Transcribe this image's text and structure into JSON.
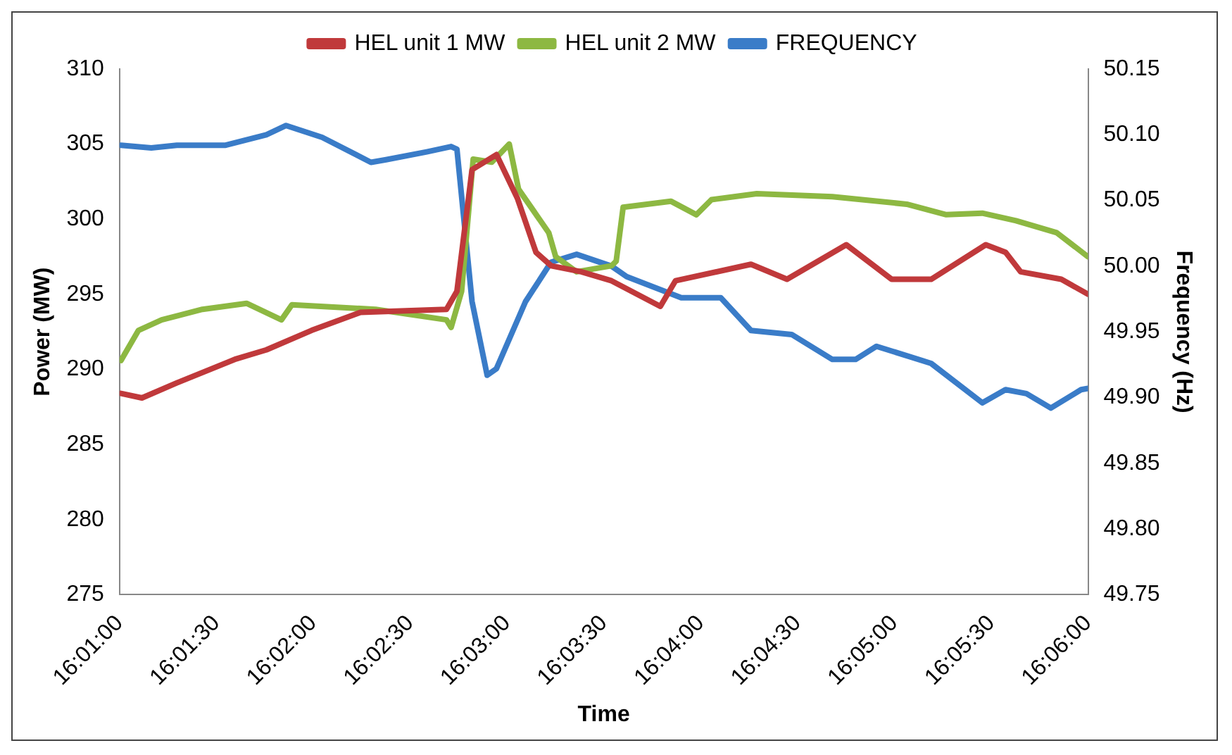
{
  "chart_data": {
    "type": "line",
    "xlabel": "Time",
    "ylabel": "Power (MW)",
    "y2label": "Frequency (Hz)",
    "legend": "top",
    "grid": false,
    "marker": "none",
    "line_style": "solid",
    "xlim": [
      16.01667,
      16.1
    ],
    "xticks": [
      {
        "value": 16.01667,
        "label": "16:01:00"
      },
      {
        "value": 16.025,
        "label": "16:01:30"
      },
      {
        "value": 16.03333,
        "label": "16:02:00"
      },
      {
        "value": 16.04167,
        "label": "16:02:30"
      },
      {
        "value": 16.05,
        "label": "16:03:00"
      },
      {
        "value": 16.05833,
        "label": "16:03:30"
      },
      {
        "value": 16.06667,
        "label": "16:04:00"
      },
      {
        "value": 16.075,
        "label": "16:04:30"
      },
      {
        "value": 16.08333,
        "label": "16:05:00"
      },
      {
        "value": 16.09167,
        "label": "16:05:30"
      },
      {
        "value": 16.1,
        "label": "16:06:00"
      }
    ],
    "ylim": [
      275,
      310
    ],
    "yticks": [
      275,
      280,
      285,
      290,
      295,
      300,
      305,
      310
    ],
    "y2lim": [
      49.75,
      50.15
    ],
    "y2ticks": [
      {
        "value": 49.75,
        "label": "49.75"
      },
      {
        "value": 49.8,
        "label": "49.80"
      },
      {
        "value": 49.85,
        "label": "49.85"
      },
      {
        "value": 49.9,
        "label": "49.90"
      },
      {
        "value": 49.95,
        "label": "49.95"
      },
      {
        "value": 50,
        "label": "50.00"
      },
      {
        "value": 50.05,
        "label": "50.05"
      },
      {
        "value": 50.1,
        "label": "50.10"
      },
      {
        "value": 50.15,
        "label": "50.15"
      }
    ],
    "series": [
      {
        "name": "HEL unit 1 MW",
        "color": "#c0393b",
        "x": [
          16.0168,
          16.0186,
          16.0216,
          16.0267,
          16.0293,
          16.0332,
          16.0374,
          16.0448,
          16.0457,
          16.047,
          16.0491,
          16.0509,
          16.0525,
          16.0538,
          16.0564,
          16.059,
          16.0632,
          16.0645,
          16.071,
          16.0741,
          16.0792,
          16.0831,
          16.0865,
          16.0912,
          16.0929,
          16.0942,
          16.0977,
          16.1
        ],
        "values": [
          288.4,
          288.1,
          289.1,
          290.7,
          291.3,
          292.6,
          293.8,
          294,
          295.2,
          303.3,
          304.3,
          301.4,
          297.8,
          296.9,
          296.5,
          295.9,
          294.2,
          295.9,
          297,
          296,
          298.3,
          296,
          296,
          298.3,
          297.8,
          296.5,
          296,
          295
        ]
      },
      {
        "name": "HEL unit 2 MW",
        "color": "#8db842",
        "x": [
          16.0168,
          16.0183,
          16.0203,
          16.0238,
          16.0276,
          16.0306,
          16.0315,
          16.0387,
          16.0448,
          16.0452,
          16.0461,
          16.0471,
          16.0487,
          16.0502,
          16.051,
          16.0536,
          16.0542,
          16.056,
          16.059,
          16.0594,
          16.06,
          16.0641,
          16.0663,
          16.0676,
          16.0715,
          16.078,
          16.0844,
          16.0878,
          16.0909,
          16.0938,
          16.0973,
          16.1
        ],
        "values": [
          290.6,
          292.6,
          293.3,
          294,
          294.4,
          293.3,
          294.3,
          294,
          293.3,
          292.8,
          295.2,
          304,
          303.8,
          305,
          302,
          299.1,
          297.5,
          296.5,
          296.9,
          297.2,
          300.8,
          301.2,
          300.3,
          301.3,
          301.7,
          301.5,
          301,
          300.3,
          300.4,
          299.9,
          299.1,
          297.5
        ]
      },
      {
        "name": "FREQUENCY",
        "color": "#3a7cc8",
        "axis": "y2",
        "x": [
          16.0168,
          16.0194,
          16.0216,
          16.0258,
          16.0293,
          16.031,
          16.0341,
          16.0383,
          16.0396,
          16.0431,
          16.0452,
          16.0457,
          16.047,
          16.0483,
          16.0491,
          16.0516,
          16.0538,
          16.056,
          16.059,
          16.0603,
          16.065,
          16.0684,
          16.071,
          16.0745,
          16.078,
          16.08,
          16.0818,
          16.0865,
          16.0909,
          16.0929,
          16.0947,
          16.0968,
          16.0994,
          16.1
        ],
        "values": [
          50.092,
          50.09,
          50.092,
          50.092,
          50.1,
          50.107,
          50.098,
          50.079,
          50.081,
          50.087,
          50.091,
          50.089,
          49.973,
          49.917,
          49.922,
          49.973,
          50.003,
          50.009,
          50,
          49.992,
          49.976,
          49.976,
          49.951,
          49.948,
          49.929,
          49.929,
          49.939,
          49.926,
          49.896,
          49.906,
          49.903,
          49.892,
          49.906,
          49.907
        ]
      }
    ]
  }
}
